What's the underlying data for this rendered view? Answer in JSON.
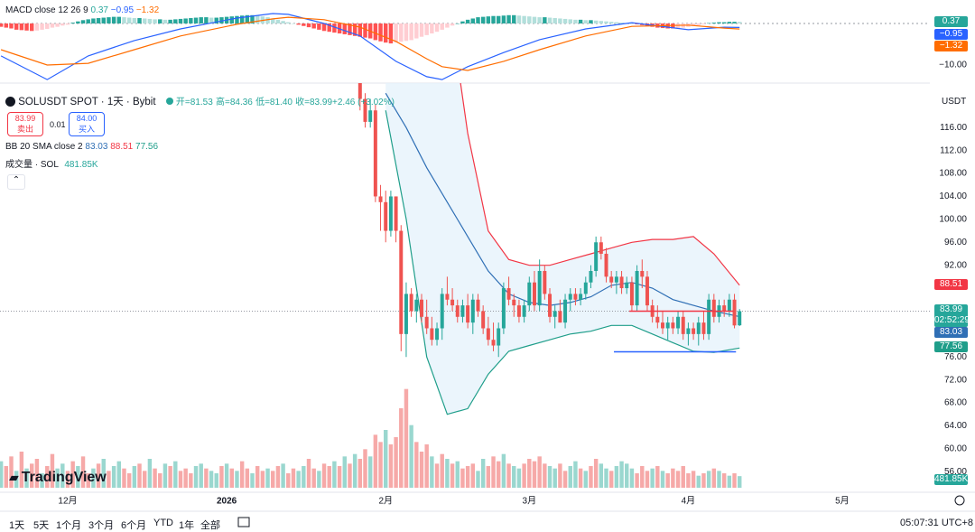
{
  "ui": {
    "macd_legend": {
      "title": "MACD close 12 26 9",
      "hist": "0.37",
      "macd": "−0.95",
      "signal": "−1.32"
    },
    "symbol": "SOLUSDT SPOT · 1天 · Bybit",
    "ohlc": {
      "open": "开=81.53",
      "high": "高=84.36",
      "low": "低=81.40",
      "close": "收=83.99",
      "change": "+2.46 (+3.02%)"
    },
    "trade": {
      "sell_price": "83.99",
      "sell": "卖出",
      "spread": "0.01",
      "buy_price": "84.00",
      "buy": "买入"
    },
    "bb_legend": {
      "title": "BB 20 SMA close 2",
      "basis": "83.03",
      "upper": "88.51",
      "lower": "77.56"
    },
    "volume_legend": {
      "title": "成交量 · SOL",
      "value": "481.85K"
    },
    "currency": "USDT",
    "tags": {
      "macd_hist": "0.37",
      "macd": "−0.95",
      "signal": "−1.32",
      "bb_upper": "88.51",
      "price": "83.99",
      "countdown": "02:52:29",
      "bb_basis": "83.03",
      "bb_lower": "77.56",
      "volume": "481.85K"
    },
    "logo": "TradingView",
    "ranges": [
      "1天",
      "5天",
      "1个月",
      "3个月",
      "6个月",
      "YTD",
      "1年",
      "全部"
    ],
    "clock": "05:07:31 UTC+8"
  },
  "chart_data": {
    "type": "candlestick",
    "up_color": "#26a69a",
    "down_color": "#ef5350",
    "xlim": [
      -13.2,
      168.1
    ],
    "xticks": [
      {
        "value": 0,
        "label": "12月"
      },
      {
        "value": 31,
        "label": "2026"
      },
      {
        "value": 62,
        "label": "2月"
      },
      {
        "value": 90,
        "label": "3月"
      },
      {
        "value": 121,
        "label": "4月"
      },
      {
        "value": 151,
        "label": "5月"
      }
    ],
    "ylim": [
      53.2,
      122.5
    ],
    "yticks": [
      {
        "value": 116,
        "label": "116.00"
      },
      {
        "value": 112,
        "label": "112.00"
      },
      {
        "value": 108,
        "label": "108.00"
      },
      {
        "value": 104,
        "label": "104.00"
      },
      {
        "value": 100,
        "label": "100.00"
      },
      {
        "value": 96,
        "label": "96.00"
      },
      {
        "value": 92,
        "label": "92.00"
      },
      {
        "value": 76,
        "label": "76.00"
      },
      {
        "value": 72,
        "label": "72.00"
      },
      {
        "value": 68,
        "label": "68.00"
      },
      {
        "value": 64,
        "label": "64.00"
      },
      {
        "value": 60,
        "label": "60.00"
      },
      {
        "value": 56,
        "label": "56.00"
      }
    ],
    "x": [
      57,
      58,
      59,
      60,
      61,
      62,
      63,
      64,
      65,
      66,
      67,
      68,
      69,
      70,
      71,
      72,
      73,
      74,
      75,
      76,
      77,
      78,
      79,
      80,
      81,
      82,
      83,
      84,
      85,
      86,
      87,
      88,
      89,
      90,
      91,
      92,
      93,
      94,
      95,
      96,
      97,
      98,
      99,
      100,
      101,
      102,
      103,
      104,
      105,
      106,
      107,
      108,
      109,
      110,
      111,
      112,
      113,
      114,
      115,
      116,
      117,
      118,
      119,
      120,
      121,
      122,
      123,
      124,
      125,
      126,
      127,
      128,
      129,
      130,
      131
    ],
    "open": [
      124,
      121,
      117,
      119,
      104,
      103,
      98,
      104,
      98,
      80,
      87,
      84,
      86,
      83,
      81,
      79,
      81,
      87,
      86,
      85,
      83,
      85,
      82,
      86,
      84,
      81,
      79,
      78,
      81,
      88,
      86,
      85,
      83,
      85,
      89,
      85,
      91,
      87,
      83,
      84,
      82,
      86,
      87,
      86,
      87,
      89,
      91,
      96,
      94,
      90,
      89,
      90,
      88,
      89,
      85,
      91,
      90,
      85,
      83,
      82,
      81,
      82,
      81,
      83,
      80,
      81,
      80,
      82,
      80,
      86,
      83,
      85,
      84,
      86,
      81.53
    ],
    "high": [
      125,
      122,
      121,
      120,
      106,
      105,
      105,
      104,
      99,
      89,
      88,
      87,
      87,
      86,
      83,
      82,
      88,
      90,
      88,
      86,
      86,
      87,
      87,
      87,
      85,
      83,
      82,
      82,
      89,
      90,
      87,
      86,
      86,
      90,
      91,
      93,
      92,
      88,
      85,
      86,
      87,
      88,
      88,
      88,
      90,
      92,
      97,
      97,
      95,
      91,
      91,
      91,
      90,
      90,
      92,
      93,
      91,
      86,
      85,
      84,
      83,
      83,
      84,
      84,
      82,
      82,
      83,
      84,
      87,
      87,
      86,
      86,
      87,
      87,
      84.36
    ],
    "low": [
      119,
      116,
      116,
      103,
      98,
      96,
      97,
      96,
      77,
      76,
      83,
      82,
      82,
      80,
      78,
      78,
      79,
      85,
      84,
      82,
      82,
      81,
      80,
      83,
      80,
      78,
      77,
      76,
      80,
      85,
      83,
      82,
      82,
      84,
      84,
      84,
      86,
      82,
      81,
      82,
      81,
      84,
      85,
      85,
      86,
      88,
      90,
      93,
      89,
      88,
      87,
      87,
      87,
      84,
      84,
      88,
      84,
      82,
      81,
      80,
      79,
      80,
      80,
      79,
      78,
      79,
      78,
      79,
      79,
      82,
      82,
      83,
      83,
      81,
      81.4
    ],
    "close": [
      121,
      117,
      119,
      104,
      103,
      98,
      104,
      98,
      80,
      87,
      84,
      86,
      83,
      81,
      79,
      81,
      87,
      86,
      85,
      83,
      85,
      82,
      86,
      84,
      81,
      79,
      78,
      81,
      88,
      86,
      85,
      83,
      85,
      89,
      85,
      91,
      87,
      83,
      84,
      82,
      86,
      87,
      86,
      87,
      89,
      91,
      96,
      94,
      90,
      89,
      90,
      88,
      89,
      85,
      91,
      90,
      85,
      83,
      82,
      81,
      82,
      81,
      83,
      80,
      81,
      80,
      82,
      80,
      86,
      83,
      85,
      84,
      86,
      81.5,
      83.99
    ],
    "bollinger": {
      "x": [
        62,
        66,
        70,
        74,
        78,
        82,
        86,
        90,
        94,
        98,
        102,
        106,
        110,
        114,
        118,
        122,
        126,
        131
      ],
      "upper": [
        125,
        132,
        142,
        140,
        115,
        98,
        93,
        92,
        92,
        93,
        94,
        95,
        96,
        96.5,
        96.5,
        97,
        94,
        88.51
      ],
      "basis": [
        122,
        116,
        109,
        103,
        97,
        91,
        87,
        85.5,
        85,
        85.5,
        86.5,
        88.5,
        89,
        88,
        86,
        85,
        84,
        83.03
      ],
      "lower": [
        119,
        100,
        76,
        66,
        67,
        73,
        77,
        78,
        79,
        80,
        80.5,
        81.5,
        81.5,
        80,
        78.5,
        77,
        76.8,
        77.56
      ],
      "upper_color": "#f23645",
      "basis_color": "#2f6fb5",
      "lower_color": "#1f9e8a",
      "fill": "#e6f2fb"
    },
    "hlines": [
      {
        "value": 84,
        "x": [
          109.5,
          129.8
        ],
        "color": "#f23645"
      },
      {
        "value": 76.9,
        "x": [
          106.5,
          130.3
        ],
        "color": "#2962ff"
      }
    ],
    "daily": {
      "x": [
        -13,
        -12,
        -11,
        -10,
        -9,
        -8,
        -7,
        -6,
        -5,
        -4,
        -3,
        -2,
        -1,
        0,
        1,
        2,
        3,
        4,
        5,
        6,
        7,
        8,
        9,
        10,
        11,
        12,
        13,
        14,
        15,
        16,
        17,
        18,
        19,
        20,
        21,
        22,
        23,
        24,
        25,
        26,
        27,
        28,
        29,
        30,
        31,
        32,
        33,
        34,
        35,
        36,
        37,
        38,
        39,
        40,
        41,
        42,
        43,
        44,
        45,
        46,
        47,
        48,
        49,
        50,
        51,
        52,
        53,
        54,
        55,
        56,
        57,
        58,
        59,
        60,
        61,
        62,
        63,
        64,
        65,
        66,
        67,
        68,
        69,
        70,
        71,
        72,
        73,
        74,
        75,
        76,
        77,
        78,
        79,
        80,
        81,
        82,
        83,
        84,
        85,
        86,
        87,
        88,
        89,
        90,
        91,
        92,
        93,
        94,
        95,
        96,
        97,
        98,
        99,
        100,
        101,
        102,
        103,
        104,
        105,
        106,
        107,
        108,
        109,
        110,
        111,
        112,
        113,
        114,
        115,
        116,
        117,
        118,
        119,
        120,
        121,
        122,
        123,
        124,
        125,
        126,
        127,
        128,
        129,
        130,
        131
      ],
      "volume": [
        1100,
        900,
        1300,
        700,
        1500,
        800,
        1000,
        1200,
        600,
        900,
        1400,
        800,
        1000,
        700,
        1100,
        900,
        1300,
        600,
        800,
        1000,
        1200,
        700,
        900,
        1100,
        800,
        600,
        900,
        1000,
        700,
        1200,
        800,
        600,
        1000,
        900,
        1100,
        700,
        800,
        600,
        900,
        1000,
        800,
        700,
        600,
        900,
        1000,
        800,
        700,
        1100,
        800,
        600,
        900,
        700,
        800,
        700,
        900,
        1000,
        600,
        800,
        700,
        900,
        1200,
        800,
        700,
        1000,
        900,
        1100,
        900,
        1300,
        1000,
        1400,
        1200,
        1600,
        1300,
        2200,
        1900,
        2400,
        1800,
        2100,
        3300,
        4100,
        2600,
        1900,
        1500,
        1800,
        1300,
        1000,
        1400,
        1200,
        1000,
        1100,
        800,
        900,
        1000,
        700,
        1200,
        900,
        1300,
        1100,
        1400,
        1000,
        900,
        800,
        1000,
        1200,
        1100,
        1300,
        1000,
        900,
        800,
        1000,
        700,
        900,
        1100,
        800,
        700,
        900,
        1200,
        1000,
        800,
        700,
        900,
        1100,
        1000,
        800,
        600,
        900,
        700,
        800,
        900,
        700,
        600,
        800,
        700,
        900,
        600,
        700,
        500,
        600,
        700,
        800,
        700,
        600,
        500,
        600,
        481.85
      ],
      "volume_direction": "uddududdudduudduddududuuddudduddududdduuduudududdudduddudduudduddudududduddudddduddduddududdduuddduduuddddduudduududduuduuuudddududdddddudududududududuu",
      "volume_ylim": [
        0,
        15000
      ],
      "volume_up_color": "#9ad7cf",
      "volume_down_color": "#f6a9a8",
      "macd_hist": [
        -0.8,
        -1,
        -1.2,
        -1.5,
        -1.6,
        -1.7,
        -1.8,
        -1.7,
        -1.5,
        -1.3,
        -1,
        -0.8,
        -0.5,
        -0.3,
        0.2,
        0.5,
        0.8,
        1,
        1.2,
        1.3,
        1.4,
        1.5,
        1.6,
        1.6,
        1.5,
        1.4,
        1.3,
        1.3,
        1.2,
        1.1,
        1,
        1,
        0.9,
        0.9,
        1,
        1.1,
        1.2,
        1.3,
        1.4,
        1.5,
        1.5,
        1.4,
        1.4,
        1.5,
        1.6,
        1.7,
        1.8,
        1.9,
        2,
        2,
        1.9,
        1.7,
        1.5,
        1.2,
        0.9,
        0.6,
        0.3,
        0,
        -0.3,
        -0.6,
        -0.9,
        -1.2,
        -1.5,
        -1.8,
        -2,
        -2.2,
        -2.4,
        -2.6,
        -2.8,
        -3,
        -3.2,
        -3.4,
        -3.6,
        -4,
        -4.3,
        -4.6,
        -4.8,
        -4.6,
        -4.4,
        -4.2,
        -4,
        -3.6,
        -3.2,
        -2.8,
        -2.4,
        -2,
        -1.5,
        -1,
        -0.5,
        0,
        0.5,
        0.9,
        1.2,
        1.5,
        1.6,
        1.7,
        1.8,
        1.8,
        1.9,
        2,
        2,
        1.9,
        1.8,
        1.7,
        1.6,
        1.5,
        1.5,
        1.4,
        1.3,
        1.2,
        1.1,
        1,
        0.9,
        0.9,
        0.8,
        0.8,
        0.7,
        0.6,
        0.5,
        0.4,
        0.3,
        0.2,
        0.1,
        0,
        -0.2,
        -0.4,
        -0.6,
        -0.8,
        -1,
        -1.1,
        -1.2,
        -1.2,
        -1.1,
        -1,
        -0.8,
        -0.6,
        -0.4,
        -0.2,
        0.1,
        0.2,
        0.3,
        0.3,
        0.4,
        0.4,
        0.37
      ],
      "hist_colors": {
        "up_strong": "#26a69a",
        "up_weak": "#b2dfdb",
        "down_strong": "#ff5252",
        "down_weak": "#ffcdd2"
      }
    },
    "macd": {
      "x": [
        -13,
        -4,
        4,
        13,
        22,
        33,
        40,
        43,
        50,
        57,
        64,
        70,
        73,
        78,
        85,
        92,
        101,
        110,
        121,
        128,
        131
      ],
      "macd": [
        -7.8,
        -13.5,
        -7.8,
        -4.1,
        -1.3,
        1.3,
        2.4,
        2.2,
        0,
        -3,
        -9.1,
        -12.8,
        -13.5,
        -10.4,
        -7,
        -3.9,
        -1.3,
        0.2,
        -1.5,
        -0.9,
        -0.95
      ],
      "signal": [
        -6.3,
        -10,
        -9.6,
        -6.3,
        -3,
        -0.2,
        1.1,
        1.5,
        0.9,
        -0.9,
        -4.3,
        -8.5,
        -10.4,
        -11.3,
        -9.1,
        -6.3,
        -3,
        -0.7,
        -0.4,
        -1.1,
        -1.32
      ],
      "macd_color": "#2962ff",
      "signal_color": "#ff6d00",
      "ylim": [
        -14.35,
        5.65
      ],
      "yticks": [
        {
          "value": -10,
          "label": "−10.00"
        }
      ]
    }
  }
}
